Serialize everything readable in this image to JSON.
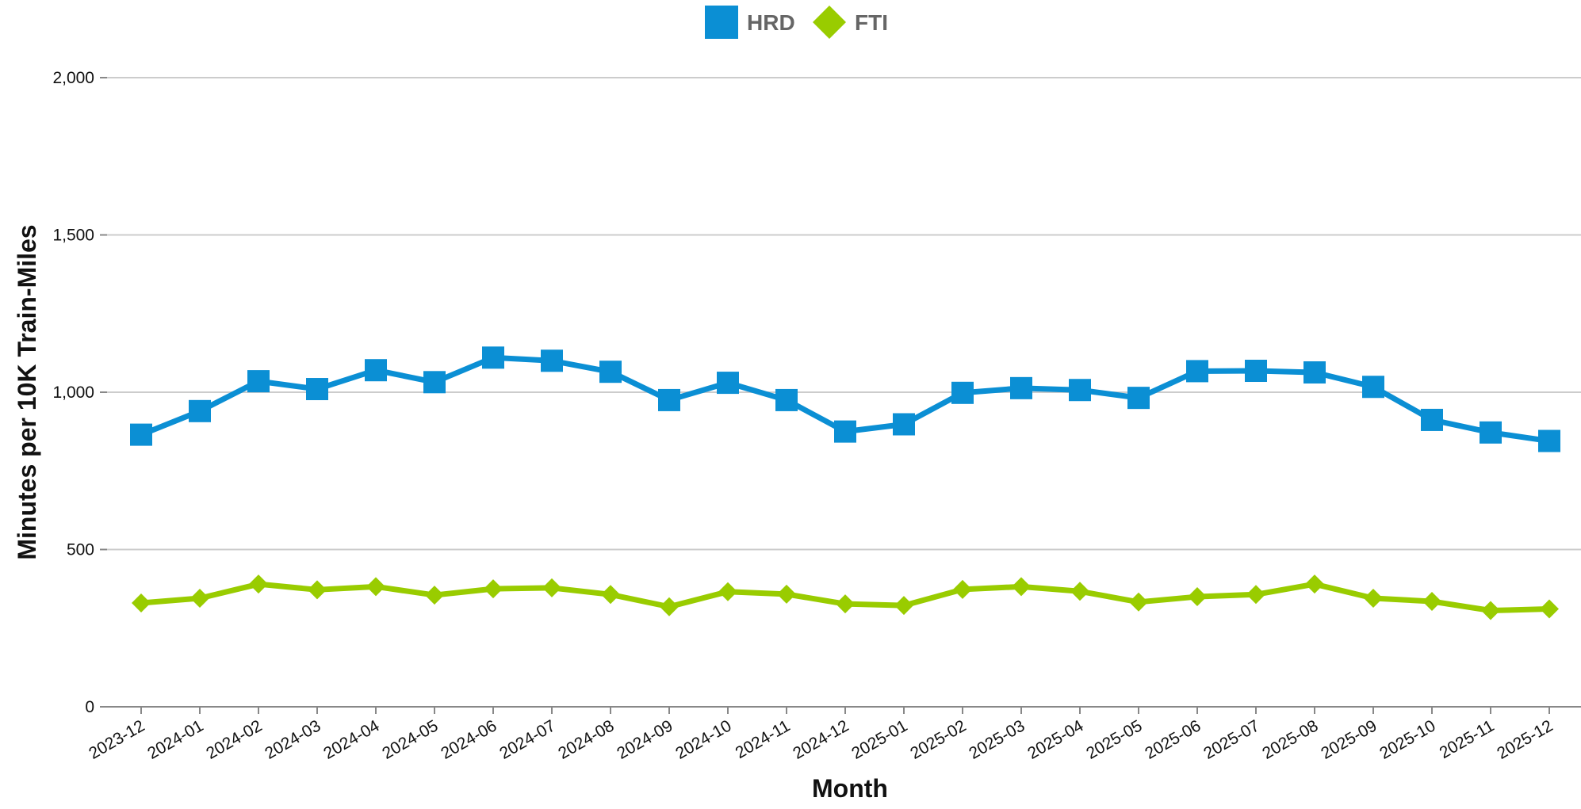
{
  "chart_data": {
    "type": "line",
    "xlabel": "Month",
    "ylabel": "Minutes per 10K Train-Miles",
    "ylim": [
      0,
      2000
    ],
    "yticks": [
      0,
      500,
      1000,
      1500,
      2000
    ],
    "ytick_labels": [
      "0",
      "500",
      "1,000",
      "1,500",
      "2,000"
    ],
    "grid": true,
    "legend_position": "top-center",
    "categories": [
      "2023-12",
      "2024-01",
      "2024-02",
      "2024-03",
      "2024-04",
      "2024-05",
      "2024-06",
      "2024-07",
      "2024-08",
      "2024-09",
      "2024-10",
      "2024-11",
      "2024-12",
      "2025-01",
      "2025-02",
      "2025-03",
      "2025-04",
      "2025-05",
      "2025-06",
      "2025-07",
      "2025-08",
      "2025-09",
      "2025-10",
      "2025-11",
      "2025-12"
    ],
    "series": [
      {
        "name": "HRD",
        "color": "#0b8fd4",
        "marker": "square",
        "values": [
          865,
          940,
          1035,
          1010,
          1070,
          1032,
          1110,
          1100,
          1065,
          975,
          1030,
          975,
          875,
          898,
          998,
          1013,
          1007,
          982,
          1067,
          1068,
          1063,
          1017,
          912,
          872,
          845
        ]
      },
      {
        "name": "FTI",
        "color": "#99cc00",
        "marker": "diamond",
        "values": [
          330,
          345,
          390,
          372,
          382,
          355,
          375,
          378,
          357,
          318,
          366,
          358,
          327,
          322,
          373,
          382,
          367,
          333,
          350,
          357,
          390,
          345,
          335,
          306,
          311
        ]
      }
    ]
  }
}
